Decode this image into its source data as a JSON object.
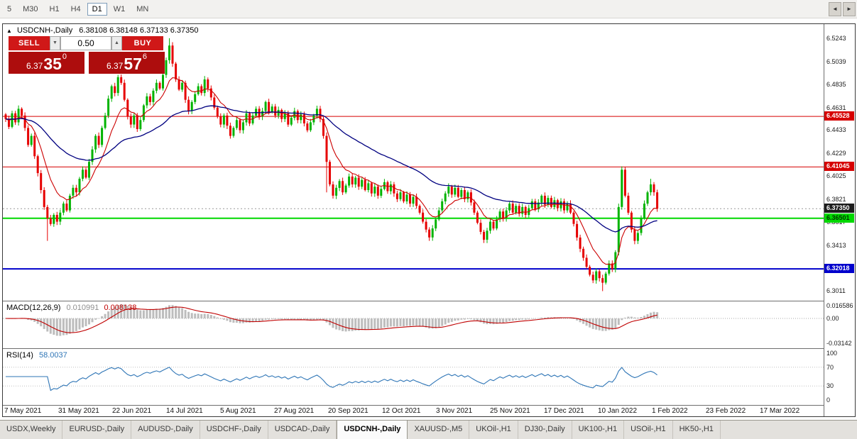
{
  "toolbar": {
    "timeframes": [
      "5",
      "M30",
      "H1",
      "H4",
      "D1",
      "W1",
      "MN"
    ],
    "active_timeframe": "D1"
  },
  "chart": {
    "title": {
      "collapse_icon": "▲",
      "symbol": "USDCNH-,Daily",
      "ohlc": "6.38108 6.38148 6.37133 6.37350"
    },
    "trade_panel": {
      "sell_label": "SELL",
      "buy_label": "BUY",
      "volume": "0.50",
      "spinner_down": "▼",
      "spinner_up": "▲",
      "sell_price": {
        "main": "6.37",
        "big": "35",
        "sup": "0"
      },
      "buy_price": {
        "main": "6.37",
        "big": "57",
        "sup": "6"
      }
    },
    "current_price": 6.3735,
    "hlines": [
      {
        "price": 6.45528,
        "color": "#d60000",
        "width": 1
      },
      {
        "price": 6.41045,
        "color": "#d60000",
        "width": 1
      },
      {
        "price": 6.36501,
        "color": "#00d800",
        "width": 2
      },
      {
        "price": 6.32018,
        "color": "#0000cc",
        "width": 2
      }
    ],
    "axis": {
      "labels": [
        "6.5243",
        "6.5039",
        "6.4835",
        "6.4631",
        "6.4433",
        "6.4229",
        "6.4025",
        "6.3821",
        "6.3617",
        "6.3413",
        "6.3209",
        "6.3011"
      ],
      "badges": [
        {
          "text": "6.45528",
          "price": 6.45528,
          "bg": "#d60000",
          "fg": "#ffffff"
        },
        {
          "text": "6.41045",
          "price": 6.41045,
          "bg": "#d60000",
          "fg": "#ffffff"
        },
        {
          "text": "6.37350",
          "price": 6.3735,
          "bg": "#1c1c1c",
          "fg": "#ffffff"
        },
        {
          "text": "6.36501",
          "price": 6.36501,
          "bg": "#00d800",
          "fg": "#003300"
        },
        {
          "text": "6.32018",
          "price": 6.32018,
          "bg": "#0000cc",
          "fg": "#ffffff"
        }
      ]
    }
  },
  "chart_data": {
    "type": "candlestick",
    "symbol": "USDCNH-,Daily",
    "title": "USDCNH-,Daily",
    "current_ohlc": {
      "open": "6.38108",
      "high": "6.38148",
      "low": "6.37133",
      "close": "6.37350"
    },
    "price_scale": {
      "min": 6.292,
      "max": 6.537
    },
    "levels": [
      6.45528,
      6.41045,
      6.36501,
      6.32018
    ],
    "x_labels": [
      "7 May 2021",
      "31 May 2021",
      "22 Jun 2021",
      "14 Jul 2021",
      "5 Aug 2021",
      "27 Aug 2021",
      "20 Sep 2021",
      "12 Oct 2021",
      "3 Nov 2021",
      "25 Nov 2021",
      "17 Dec 2021",
      "10 Jan 2022",
      "1 Feb 2022",
      "23 Feb 2022",
      "17 Mar 2022"
    ],
    "closes": [
      6.453,
      6.446,
      6.458,
      6.45,
      6.462,
      6.456,
      6.445,
      6.43,
      6.438,
      6.42,
      6.405,
      6.39,
      6.375,
      6.365,
      6.36,
      6.368,
      6.362,
      6.37,
      6.378,
      6.372,
      6.385,
      6.392,
      6.388,
      6.4,
      6.408,
      6.401,
      6.415,
      6.426,
      6.438,
      6.43,
      6.445,
      6.456,
      6.471,
      6.482,
      6.476,
      6.49,
      6.485,
      6.47,
      6.455,
      6.448,
      6.456,
      6.444,
      6.452,
      6.465,
      6.473,
      6.468,
      6.478,
      6.485,
      6.48,
      6.492,
      6.505,
      6.518,
      6.502,
      6.488,
      6.479,
      6.485,
      6.47,
      6.46,
      6.468,
      6.475,
      6.482,
      6.476,
      6.488,
      6.48,
      6.472,
      6.463,
      6.455,
      6.448,
      6.456,
      6.447,
      6.438,
      6.445,
      6.452,
      6.443,
      6.45,
      6.458,
      6.449,
      6.456,
      6.462,
      6.455,
      6.46,
      6.468,
      6.459,
      6.464,
      6.456,
      6.461,
      6.453,
      6.458,
      6.448,
      6.454,
      6.46,
      6.452,
      6.457,
      6.449,
      6.443,
      6.45,
      6.456,
      6.462,
      6.453,
      6.438,
      6.415,
      6.395,
      6.385,
      6.392,
      6.398,
      6.388,
      6.394,
      6.402,
      6.395,
      6.401,
      6.393,
      6.399,
      6.39,
      6.396,
      6.387,
      6.393,
      6.385,
      6.391,
      6.397,
      6.389,
      6.395,
      6.387,
      6.382,
      6.388,
      6.38,
      6.386,
      6.378,
      6.384,
      6.376,
      6.37,
      6.362,
      6.355,
      6.348,
      6.356,
      6.364,
      6.372,
      6.38,
      6.387,
      6.393,
      6.386,
      6.392,
      6.384,
      6.39,
      6.382,
      6.388,
      6.379,
      6.37,
      6.361,
      6.353,
      6.346,
      6.354,
      6.362,
      6.356,
      6.364,
      6.371,
      6.365,
      6.372,
      6.378,
      6.37,
      6.376,
      6.369,
      6.375,
      6.368,
      6.374,
      6.38,
      6.373,
      6.379,
      6.385,
      6.377,
      6.383,
      6.375,
      6.381,
      6.374,
      6.38,
      6.372,
      6.378,
      6.37,
      6.36,
      6.348,
      6.338,
      6.33,
      6.322,
      6.315,
      6.31,
      6.318,
      6.312,
      6.308,
      6.316,
      6.325,
      6.32,
      6.335,
      6.375,
      6.408,
      6.385,
      6.37,
      6.355,
      6.345,
      6.352,
      6.365,
      6.378,
      6.388,
      6.395,
      6.388,
      6.3735
    ],
    "wick_overrides": {
      "13": {
        "l": 6.345
      },
      "51": {
        "h": 6.5245
      },
      "100": {
        "l": 6.388
      },
      "186": {
        "l": 6.3005
      },
      "192": {
        "h": 6.411
      },
      "201": {
        "h": 6.4
      }
    },
    "moving_averages": [
      {
        "name": "fast-ma",
        "period": 10,
        "color": "#cc0000"
      },
      {
        "name": "slow-ma",
        "period": 45,
        "color": "#000080"
      }
    ],
    "macd": {
      "label": "MACD(12,26,9)",
      "values_text": [
        "0.010991",
        "0.008138"
      ],
      "axis": [
        "0.016586",
        "0.00",
        "-0.03142"
      ],
      "params": [
        12,
        26,
        9
      ],
      "histogram_color": "#bdbdbd",
      "signal_color": "#c00000"
    },
    "rsi": {
      "label": "RSI(14)",
      "value_text": "58.0037",
      "axis": [
        "100",
        "70",
        "30",
        "0"
      ],
      "period": 14,
      "line_color": "#2e75b6",
      "guide_levels": [
        70,
        30
      ]
    }
  },
  "tabbar": {
    "tabs": [
      "USDX,Weekly",
      "EURUSD-,Daily",
      "AUDUSD-,Daily",
      "USDCHF-,Daily",
      "USDCAD-,Daily",
      "USDCNH-,Daily",
      "XAUUSD-,M5",
      "UKOil-,H1",
      "DJ30-,Daily",
      "UK100-,H1",
      "USOil-,H1",
      "HK50-,H1"
    ],
    "active_index": 5,
    "scroll_left": "◄",
    "scroll_right": "►"
  }
}
